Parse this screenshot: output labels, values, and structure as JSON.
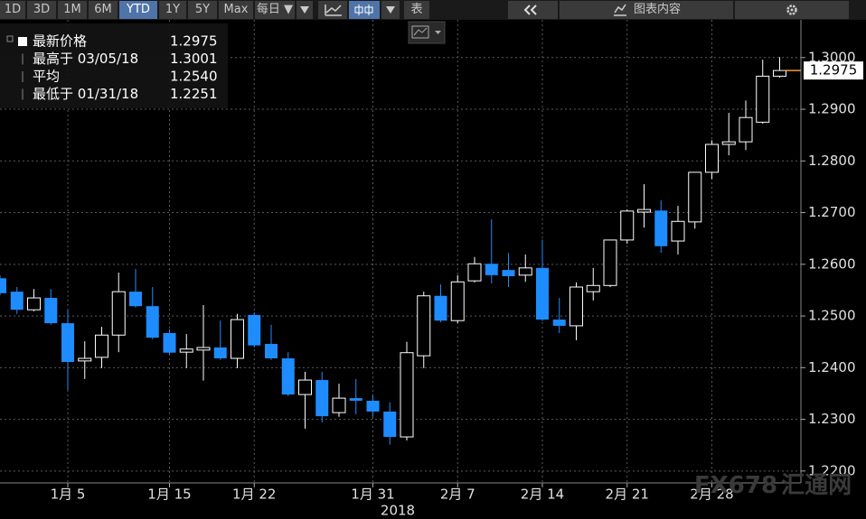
{
  "toolbar": {
    "ranges": [
      "1D",
      "3D",
      "1M",
      "6M",
      "YTD",
      "1Y",
      "5Y",
      "Max"
    ],
    "frequency": "每日 ▼",
    "table": "表",
    "chart_content": "图表内容"
  },
  "chart_data": {
    "type": "candlestick",
    "categories": [
      null,
      null,
      null,
      null,
      "1月 5",
      null,
      null,
      null,
      null,
      null,
      "1月 15",
      null,
      null,
      null,
      null,
      "1月 22",
      null,
      null,
      null,
      null,
      null,
      null,
      "1月 31",
      null,
      null,
      null,
      null,
      "2月 7",
      null,
      null,
      null,
      null,
      "2月 14",
      null,
      null,
      null,
      null,
      "2月 21",
      null,
      null,
      null,
      null,
      "2月 28",
      null,
      null,
      null,
      null
    ],
    "x_label": "2018",
    "open": [
      1.2573,
      1.2547,
      1.2512,
      1.2535,
      1.2486,
      1.2413,
      1.242,
      1.2463,
      1.2547,
      1.2519,
      1.2467,
      1.243,
      1.2434,
      1.2439,
      1.2418,
      1.2502,
      1.2446,
      1.2418,
      1.2348,
      1.2376,
      1.2313,
      1.2341,
      1.2336,
      1.2315,
      1.2266,
      1.2423,
      1.2539,
      1.2491,
      1.2568,
      1.2601,
      1.2589,
      1.2579,
      1.2593,
      1.2493,
      1.2481,
      1.2547,
      1.2559,
      1.2647,
      1.2701,
      1.2704,
      1.2645,
      1.2682,
      1.2778,
      1.2832,
      1.2837,
      1.2875,
      1.2964
    ],
    "high": [
      1.2579,
      1.2556,
      1.2552,
      1.2552,
      1.2512,
      1.2451,
      1.2479,
      1.2584,
      1.2591,
      1.2556,
      1.2474,
      1.2465,
      1.2521,
      1.2491,
      1.2504,
      1.2507,
      1.2483,
      1.243,
      1.2392,
      1.2392,
      1.2369,
      1.2378,
      1.2348,
      1.2333,
      1.245,
      1.2547,
      1.2561,
      1.2579,
      1.2614,
      1.2687,
      1.2622,
      1.2619,
      1.2648,
      1.2535,
      1.2565,
      1.2593,
      1.2647,
      1.2706,
      1.2755,
      1.2724,
      1.2713,
      1.2778,
      1.284,
      1.2893,
      1.2917,
      1.2996,
      1.3001
    ],
    "low": [
      1.254,
      1.2504,
      1.2509,
      1.2483,
      1.2357,
      1.2378,
      1.2399,
      1.243,
      1.2516,
      1.2455,
      1.2425,
      1.2399,
      1.2375,
      1.2415,
      1.2399,
      1.2439,
      1.2415,
      1.2345,
      1.2282,
      1.2294,
      1.2305,
      1.231,
      1.2305,
      1.2251,
      1.2259,
      1.2399,
      1.2488,
      1.2486,
      1.2565,
      1.2563,
      1.2556,
      1.2566,
      1.249,
      1.2467,
      1.2453,
      1.253,
      1.2556,
      1.264,
      1.2671,
      1.2622,
      1.2619,
      1.2669,
      1.2765,
      1.2811,
      1.2821,
      1.2872,
      1.2961
    ],
    "close": [
      1.2544,
      1.2512,
      1.2535,
      1.2486,
      1.2411,
      1.2418,
      1.2463,
      1.2547,
      1.2519,
      1.2458,
      1.2429,
      1.2436,
      1.2439,
      1.2418,
      1.2493,
      1.2443,
      1.2418,
      1.2348,
      1.2376,
      1.2306,
      1.2341,
      1.2336,
      1.2315,
      1.2266,
      1.2429,
      1.2539,
      1.2491,
      1.2566,
      1.2601,
      1.2579,
      1.2577,
      1.2593,
      1.2493,
      1.2481,
      1.2556,
      1.2559,
      1.2647,
      1.2703,
      1.2706,
      1.2635,
      1.2683,
      1.2778,
      1.2832,
      1.2837,
      1.2884,
      1.2964,
      1.2975
    ],
    "up_color": "#ffffff",
    "down_color": "#1e8cff",
    "ylim": [
      1.2177,
      1.3073
    ],
    "yticks": [
      {
        "value": 1.22,
        "label": "1.2200"
      },
      {
        "value": 1.23,
        "label": "1.2300"
      },
      {
        "value": 1.24,
        "label": "1.2400"
      },
      {
        "value": 1.25,
        "label": "1.2500"
      },
      {
        "value": 1.26,
        "label": "1.2600"
      },
      {
        "value": 1.27,
        "label": "1.2700"
      },
      {
        "value": 1.28,
        "label": "1.2800"
      },
      {
        "value": 1.29,
        "label": "1.2900"
      },
      {
        "value": 1.3,
        "label": "1.3000"
      }
    ],
    "grid": true,
    "last_value": 1.2975,
    "last_color": "#ff9a1f",
    "stats": [
      {
        "label": "最新价格",
        "value": "1.2975"
      },
      {
        "label": "最高于 03/05/18",
        "value": "1.3001"
      },
      {
        "label": "平均",
        "value": "1.2540"
      },
      {
        "label": "最低于 01/31/18",
        "value": "1.2251"
      }
    ],
    "watermark": {
      "brand": "FX678",
      "name": "汇通网"
    }
  }
}
